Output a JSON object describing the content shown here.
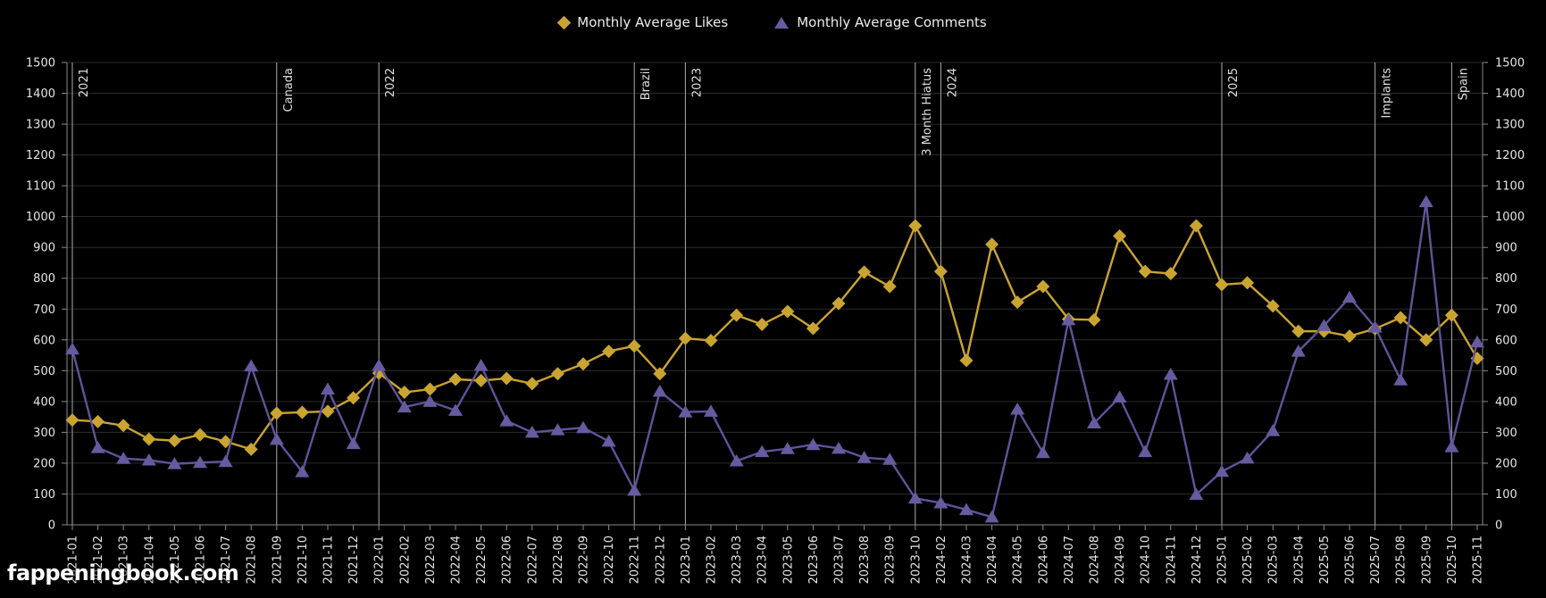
{
  "legend": {
    "likes_label": "Monthly Average Likes",
    "comments_label": "Monthly Average Comments"
  },
  "watermark": "fappeningbook.com",
  "colors": {
    "background": "#000000",
    "likes": "#C9A431",
    "comments_line": "#5F5499",
    "comments_marker": "#665B9F",
    "grid": "#2b2b2b",
    "axis": "#8a8a8a",
    "annotation_line": "#ababab",
    "tick_label": "#e6e6e6",
    "annotation_label": "#e0e0e0",
    "legend_text": "#ededed",
    "watermark_color": "#ffffff"
  },
  "chart_data": {
    "type": "line",
    "title": "",
    "xlabel": "",
    "ylabel": "",
    "ylim": [
      0,
      1500
    ],
    "ytick_step": 100,
    "y_axis_sides": [
      "left",
      "right"
    ],
    "grid": "horizontal",
    "legend_position": "top-center",
    "x_label_rotation": 90,
    "categories": [
      "2021-01",
      "2021-02",
      "2021-03",
      "2021-04",
      "2021-05",
      "2021-06",
      "2021-07",
      "2021-08",
      "2021-09",
      "2021-10",
      "2021-11",
      "2021-12",
      "2022-01",
      "2022-02",
      "2022-03",
      "2022-04",
      "2022-05",
      "2022-06",
      "2022-07",
      "2022-08",
      "2022-09",
      "2022-10",
      "2022-11",
      "2022-12",
      "2023-01",
      "2023-02",
      "2023-03",
      "2023-04",
      "2023-05",
      "2023-06",
      "2023-07",
      "2023-08",
      "2023-09",
      "2023-10",
      "2024-02",
      "2024-03",
      "2024-04",
      "2024-05",
      "2024-06",
      "2024-07",
      "2024-08",
      "2024-09",
      "2024-10",
      "2024-11",
      "2024-12",
      "2025-01",
      "2025-02",
      "2025-03",
      "2025-04",
      "2025-05",
      "2025-06",
      "2025-07",
      "2025-08",
      "2025-09",
      "2025-10",
      "2025-11"
    ],
    "series": [
      {
        "name": "Monthly Average Likes",
        "marker": "diamond",
        "color": "#C9A431",
        "values": [
          340,
          335,
          322,
          278,
          273,
          292,
          270,
          245,
          362,
          365,
          368,
          412,
          492,
          430,
          440,
          472,
          468,
          475,
          458,
          490,
          522,
          563,
          580,
          490,
          605,
          598,
          680,
          650,
          692,
          637,
          718,
          820,
          773,
          970,
          822,
          533,
          910,
          722,
          773,
          667,
          665,
          937,
          822,
          815,
          970,
          779,
          785,
          710,
          628,
          628,
          612,
          636,
          672,
          600,
          680,
          540
        ]
      },
      {
        "name": "Monthly Average Comments",
        "marker": "triangle",
        "color": "#5F5499",
        "values": [
          570,
          250,
          215,
          210,
          198,
          202,
          205,
          515,
          277,
          172,
          440,
          263,
          517,
          382,
          400,
          371,
          517,
          337,
          300,
          308,
          315,
          271,
          112,
          433,
          366,
          368,
          207,
          237,
          247,
          260,
          248,
          218,
          212,
          86,
          71,
          49,
          25,
          375,
          234,
          665,
          330,
          414,
          237,
          488,
          98,
          173,
          216,
          305,
          563,
          646,
          738,
          641,
          470,
          1048,
          253,
          593
        ]
      }
    ],
    "annotations": [
      {
        "label": "2021",
        "category": "2021-01"
      },
      {
        "label": "Canada",
        "category": "2021-09"
      },
      {
        "label": "2022",
        "category": "2022-01"
      },
      {
        "label": "Brazil",
        "category": "2022-11"
      },
      {
        "label": "2023",
        "category": "2023-01"
      },
      {
        "label": "3 Month Hiatus",
        "category": "2023-10"
      },
      {
        "label": "2024",
        "category": "2024-02"
      },
      {
        "label": "2025",
        "category": "2025-01"
      },
      {
        "label": "Implants",
        "category": "2025-07"
      },
      {
        "label": "Spain",
        "category": "2025-10"
      }
    ]
  }
}
